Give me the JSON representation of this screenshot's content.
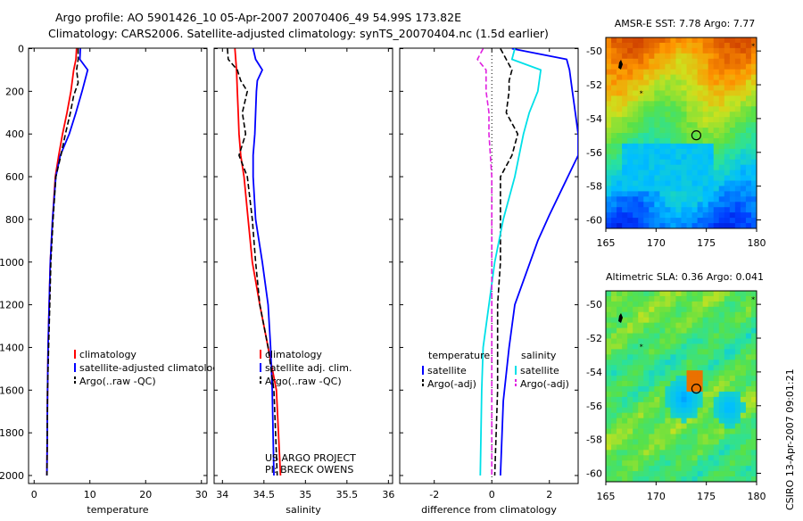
{
  "header": {
    "line1": "Argo profile: AO 5901426_10 05-Apr-2007 20070406_49 54.99S 173.82E",
    "line2": "Climatology: CARS2006. Satellite-adjusted climatology: synTS_20070404.nc (1.5d earlier)"
  },
  "credit": "CSIRO 13-Apr-2007 09:01:21",
  "project": {
    "line1": "US ARGO PROJECT",
    "line2": "PI: BRECK OWENS"
  },
  "colors": {
    "red": "#ff0000",
    "blue": "#0000ff",
    "black": "#000000",
    "cyan": "#00e0e8",
    "magenta": "#e020e0"
  },
  "chart_data": [
    {
      "type": "line",
      "xlabel": "temperature",
      "ylim": [
        0,
        2050
      ],
      "xlim": [
        -1,
        31
      ],
      "yticks": [
        0,
        200,
        400,
        600,
        800,
        1000,
        1200,
        1400,
        1600,
        1800,
        2000
      ],
      "xticks": [
        0,
        10,
        20,
        30
      ],
      "legend": [
        "climatology",
        "satellite-adjusted climatology",
        "Argo(..raw -QC)"
      ],
      "series": [
        {
          "name": "climatology",
          "color": "red",
          "x": [
            7.6,
            7.5,
            7.1,
            6.6,
            5.9,
            5.1,
            4.4,
            3.8,
            3.3,
            2.9,
            2.7,
            2.5,
            2.4,
            2.3
          ],
          "y": [
            0,
            50,
            100,
            200,
            300,
            400,
            500,
            600,
            800,
            1000,
            1200,
            1400,
            1600,
            2000
          ]
        },
        {
          "name": "satellite-adjusted climatology",
          "color": "blue",
          "x": [
            8.3,
            8.2,
            9.6,
            8.6,
            7.5,
            6.3,
            4.7,
            3.9,
            3.3,
            2.9,
            2.7,
            2.5,
            2.4,
            2.3
          ],
          "y": [
            0,
            50,
            100,
            200,
            300,
            400,
            500,
            600,
            800,
            1000,
            1200,
            1400,
            1600,
            2000
          ]
        },
        {
          "name": "Argo(..raw -QC)",
          "color": "black",
          "dash": true,
          "x": [
            7.9,
            7.9,
            7.6,
            7.9,
            7.1,
            6.5,
            5.6,
            4.8,
            3.9,
            3.4,
            3.0,
            2.8,
            2.6,
            2.4,
            2.3
          ],
          "y": [
            0,
            50,
            100,
            160,
            220,
            300,
            400,
            500,
            600,
            800,
            1000,
            1200,
            1400,
            1600,
            2000
          ]
        }
      ]
    },
    {
      "type": "line",
      "xlabel": "salinity",
      "ylim": [
        0,
        2050
      ],
      "xlim": [
        33.9,
        36.05
      ],
      "yticks": [
        0,
        200,
        400,
        600,
        800,
        1000,
        1200,
        1400,
        1600,
        1800,
        2000
      ],
      "xticks": [
        34,
        34.5,
        35,
        35.5,
        36
      ],
      "legend": [
        "climatology",
        "satellite adj. clim.",
        "Argo(..raw -QC)"
      ],
      "series": [
        {
          "name": "climatology",
          "color": "red",
          "x": [
            34.15,
            34.16,
            34.17,
            34.18,
            34.19,
            34.2,
            34.22,
            34.26,
            34.31,
            34.36,
            34.45,
            34.55,
            34.65,
            34.7
          ],
          "y": [
            0,
            50,
            100,
            200,
            300,
            400,
            500,
            600,
            800,
            1000,
            1200,
            1400,
            1600,
            2000
          ]
        },
        {
          "name": "satellite adj. clim.",
          "color": "blue",
          "x": [
            34.37,
            34.4,
            34.48,
            34.42,
            34.41,
            34.4,
            34.39,
            34.37,
            34.37,
            34.4,
            34.48,
            34.55,
            34.58,
            34.6,
            34.62
          ],
          "y": [
            0,
            50,
            100,
            150,
            200,
            300,
            400,
            500,
            600,
            800,
            1000,
            1200,
            1400,
            1600,
            2000
          ]
        },
        {
          "name": "Argo(..raw -QC)",
          "color": "black",
          "dash": true,
          "x": [
            34.06,
            34.07,
            34.18,
            34.22,
            34.3,
            34.24,
            34.28,
            34.2,
            34.3,
            34.36,
            34.4,
            34.45,
            34.55,
            34.62,
            34.66
          ],
          "y": [
            0,
            50,
            100,
            150,
            200,
            300,
            400,
            500,
            600,
            800,
            1000,
            1200,
            1400,
            1600,
            2000
          ]
        }
      ]
    },
    {
      "type": "line",
      "xlabel": "difference from climatology",
      "ylim": [
        0,
        2050
      ],
      "xlim": [
        -3.2,
        3.0
      ],
      "yticks": [
        0,
        200,
        400,
        600,
        800,
        1000,
        1200,
        1400,
        1600,
        1800,
        2000
      ],
      "xticks": [
        -2,
        0,
        2
      ],
      "legend_groups": [
        {
          "title": "temperature",
          "items": [
            "satellite",
            "Argo(-adj)"
          ]
        },
        {
          "title": "salinity",
          "items": [
            "satellite",
            "Argo(-adj)"
          ]
        }
      ],
      "series": [
        {
          "name": "satellite",
          "group": "temperature",
          "color": "blue",
          "x": [
            0.7,
            2.6,
            2.7,
            2.8,
            2.9,
            3.0,
            3.0,
            2.0,
            1.6,
            1.2,
            0.8,
            0.6,
            0.4,
            0.3
          ],
          "y": [
            0,
            50,
            100,
            200,
            300,
            400,
            500,
            780,
            900,
            1050,
            1200,
            1400,
            1650,
            2000
          ]
        },
        {
          "name": "Argo(-adj)",
          "group": "temperature",
          "color": "black",
          "dash": true,
          "x": [
            0.3,
            0.5,
            0.7,
            0.6,
            0.6,
            0.5,
            0.9,
            0.7,
            0.3,
            0.3,
            0.3,
            0.2,
            0.2,
            0.2,
            0.1
          ],
          "y": [
            0,
            50,
            100,
            150,
            200,
            300,
            400,
            500,
            600,
            800,
            1000,
            1200,
            1400,
            1600,
            2000
          ]
        },
        {
          "name": "satellite",
          "group": "salinity",
          "color": "cyan",
          "x": [
            0.8,
            0.7,
            1.7,
            1.6,
            1.3,
            1.1,
            0.8,
            0.4,
            0.1,
            -0.1,
            -0.3,
            -0.35,
            -0.4
          ],
          "y": [
            0,
            50,
            100,
            200,
            300,
            400,
            600,
            800,
            1000,
            1200,
            1400,
            1600,
            2000
          ]
        },
        {
          "name": "Argo(-adj)",
          "group": "salinity",
          "color": "magenta",
          "dash": true,
          "x": [
            -0.3,
            -0.5,
            -0.2,
            -0.2,
            -0.1,
            -0.1,
            0.0,
            0.0,
            0.0,
            0.0,
            0.0,
            0.0
          ],
          "y": [
            0,
            50,
            100,
            200,
            300,
            400,
            600,
            800,
            1000,
            1200,
            1600,
            2000
          ]
        }
      ]
    },
    {
      "type": "heatmap",
      "title": "AMSR-E SST: 7.78 Argo: 7.77",
      "xlim": [
        165,
        180
      ],
      "ylim": [
        -60.5,
        -49.2
      ],
      "xticks": [
        165,
        170,
        175,
        180
      ],
      "yticks": [
        -50,
        -52,
        -54,
        -56,
        -58,
        -60
      ],
      "marker": {
        "lon": 173.82,
        "lat": -54.99
      }
    },
    {
      "type": "heatmap",
      "title": "Altimetric SLA: 0.36 Argo: 0.041",
      "xlim": [
        165,
        180
      ],
      "ylim": [
        -60.5,
        -49.2
      ],
      "xticks": [
        165,
        170,
        175,
        180
      ],
      "yticks": [
        -50,
        -52,
        -54,
        -56,
        -58,
        -60
      ],
      "marker": {
        "lon": 173.82,
        "lat": -54.99
      }
    }
  ]
}
